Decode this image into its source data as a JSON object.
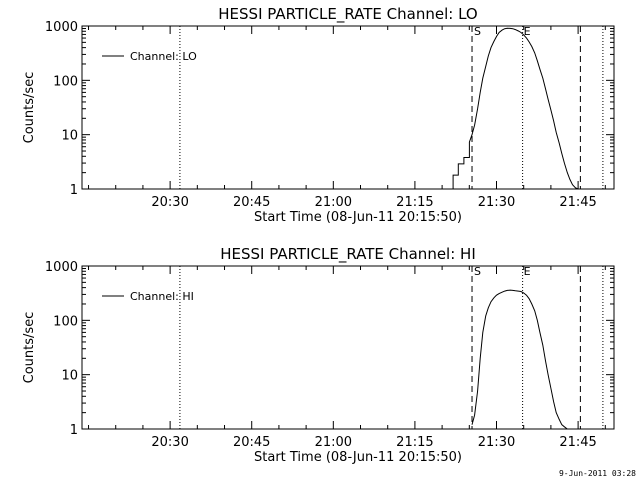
{
  "chart_data": [
    {
      "type": "line",
      "title": "HESSI PARTICLE_RATE Channel: LO",
      "xlabel": "Start Time (08-Jun-11 20:15:50)",
      "ylabel": "Counts/sec",
      "y_scale": "log",
      "ylim": [
        1,
        1000
      ],
      "y_ticks": [
        "1",
        "10",
        "100",
        "1000"
      ],
      "xlim": [
        20.23,
        21.86
      ],
      "x_ticks": [
        {
          "v": 20.5,
          "label": "20:30"
        },
        {
          "v": 20.75,
          "label": "20:45"
        },
        {
          "v": 21.0,
          "label": "21:00"
        },
        {
          "v": 21.25,
          "label": "21:15"
        },
        {
          "v": 21.5,
          "label": "21:30"
        },
        {
          "v": 21.75,
          "label": "21:45"
        }
      ],
      "legend": {
        "label": "Channel: LO",
        "position": "top-left"
      },
      "series": [
        {
          "name": "Channel: LO",
          "x": [
            21.367,
            21.367,
            21.383,
            21.383,
            21.4,
            21.4,
            21.417,
            21.417,
            21.425,
            21.433,
            21.442,
            21.45,
            21.458,
            21.467,
            21.475,
            21.483,
            21.492,
            21.5,
            21.508,
            21.517,
            21.525,
            21.533,
            21.542,
            21.55,
            21.558,
            21.567,
            21.575,
            21.583,
            21.592,
            21.6,
            21.608,
            21.617,
            21.625,
            21.633,
            21.642,
            21.65,
            21.658,
            21.667,
            21.675,
            21.683,
            21.692,
            21.7,
            21.708,
            21.717,
            21.725,
            21.733,
            21.742,
            21.75,
            21.758
          ],
          "y": [
            1.0,
            1.8,
            1.8,
            2.9,
            2.9,
            3.8,
            3.8,
            7.3,
            10,
            15,
            30,
            60,
            110,
            180,
            280,
            400,
            520,
            640,
            760,
            840,
            890,
            910,
            905,
            890,
            860,
            810,
            760,
            690,
            600,
            510,
            420,
            320,
            230,
            160,
            110,
            70,
            45,
            28,
            18,
            11,
            7,
            4.5,
            3,
            2,
            1.5,
            1.2,
            1.05,
            1.0,
            1.0
          ]
        }
      ],
      "markers": [
        {
          "type": "dotted",
          "x": 20.53
        },
        {
          "type": "dashed",
          "x": 21.425,
          "label": "S"
        },
        {
          "type": "dotted",
          "x": 21.58,
          "label": "E"
        },
        {
          "type": "dashed",
          "x": 21.757
        },
        {
          "type": "dotted",
          "x": 21.826
        }
      ]
    },
    {
      "type": "line",
      "title": "HESSI PARTICLE_RATE Channel: HI",
      "xlabel": "Start Time (08-Jun-11 20:15:50)",
      "ylabel": "Counts/sec",
      "y_scale": "log",
      "ylim": [
        1,
        1000
      ],
      "y_ticks": [
        "1",
        "10",
        "100",
        "1000"
      ],
      "xlim": [
        20.23,
        21.86
      ],
      "x_ticks": [
        {
          "v": 20.5,
          "label": "20:30"
        },
        {
          "v": 20.75,
          "label": "20:45"
        },
        {
          "v": 21.0,
          "label": "21:00"
        },
        {
          "v": 21.25,
          "label": "21:15"
        },
        {
          "v": 21.5,
          "label": "21:30"
        },
        {
          "v": 21.75,
          "label": "21:45"
        }
      ],
      "legend": {
        "label": "Channel: HI",
        "position": "top-left"
      },
      "series": [
        {
          "name": "Channel: HI",
          "x": [
            21.425,
            21.433,
            21.442,
            21.45,
            21.458,
            21.467,
            21.475,
            21.483,
            21.492,
            21.5,
            21.508,
            21.517,
            21.525,
            21.533,
            21.542,
            21.55,
            21.558,
            21.567,
            21.575,
            21.583,
            21.592,
            21.6,
            21.608,
            21.617,
            21.625,
            21.633,
            21.642,
            21.65,
            21.658,
            21.667,
            21.675,
            21.683,
            21.692,
            21.7,
            21.708,
            21.717,
            21.725,
            21.733,
            21.742,
            21.75
          ],
          "y": [
            1.2,
            1.8,
            5,
            20,
            60,
            120,
            170,
            220,
            260,
            290,
            310,
            330,
            345,
            355,
            360,
            355,
            350,
            345,
            340,
            320,
            290,
            250,
            200,
            150,
            100,
            60,
            35,
            18,
            10,
            5.5,
            3.2,
            2,
            1.5,
            1.2,
            1.1,
            1.0,
            1.0,
            1.0,
            1.0,
            1.0
          ]
        }
      ],
      "markers": [
        {
          "type": "dotted",
          "x": 20.53
        },
        {
          "type": "dashed",
          "x": 21.425,
          "label": "S"
        },
        {
          "type": "dotted",
          "x": 21.58,
          "label": "E"
        },
        {
          "type": "dashed",
          "x": 21.757
        },
        {
          "type": "dotted",
          "x": 21.826
        }
      ]
    }
  ],
  "footer": "9-Jun-2011 03:28"
}
